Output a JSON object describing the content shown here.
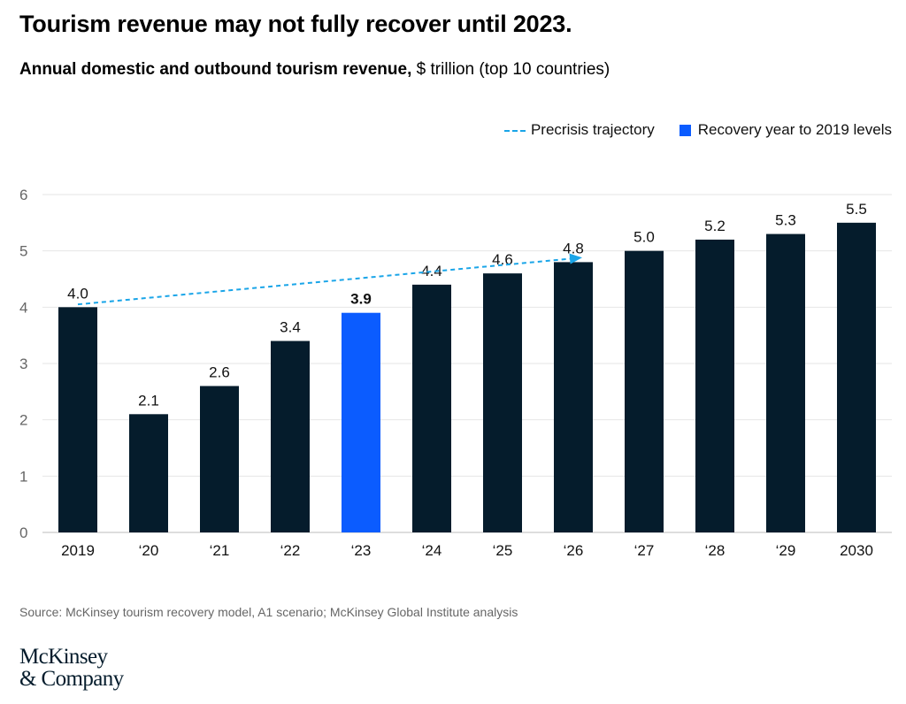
{
  "chart_data": {
    "type": "bar",
    "title": "Tourism revenue may not fully recover until 2023.",
    "subtitle_bold": "Annual domestic and outbound tourism revenue,",
    "subtitle_unit": " $ trillion (top 10 countries)",
    "categories": [
      "2019",
      "‘20",
      "‘21",
      "‘22",
      "‘23",
      "‘24",
      "‘25",
      "‘26",
      "‘27",
      "‘28",
      "‘29",
      "2030"
    ],
    "values": [
      4.0,
      2.1,
      2.6,
      3.4,
      3.9,
      4.4,
      4.6,
      4.8,
      5.0,
      5.2,
      5.3,
      5.5
    ],
    "value_labels": [
      "4.0",
      "2.1",
      "2.6",
      "3.4",
      "3.9",
      "4.4",
      "4.6",
      "4.8",
      "5.0",
      "5.2",
      "5.3",
      "5.5"
    ],
    "highlight_index": 4,
    "ylim": [
      0,
      6
    ],
    "yticks": [
      "0",
      "1",
      "2",
      "3",
      "4",
      "5",
      "6"
    ],
    "grid": true,
    "legend_placement": "top-right",
    "legend": {
      "trajectory": "Precrisis trajectory",
      "recovery": "Recovery year to 2019 levels"
    },
    "precrisis_trajectory": {
      "from": {
        "x": "2019",
        "y": 4.05
      },
      "to": {
        "x": "‘26",
        "y": 4.88
      }
    },
    "colors": {
      "bar": "#051c2c",
      "highlight": "#0b5cff",
      "trajectory": "#1aa5e8",
      "grid": "#e6e6e6"
    }
  },
  "source": "Source: McKinsey tourism recovery model, A1 scenario; McKinsey Global Institute analysis",
  "logo": {
    "line1": "McKinsey",
    "line2": "& Company"
  }
}
